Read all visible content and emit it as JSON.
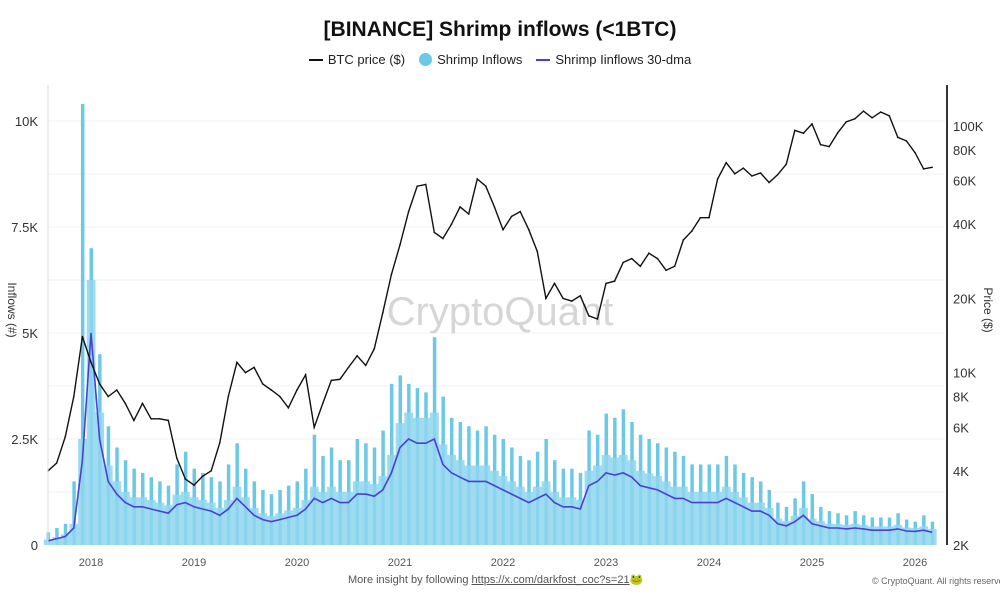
{
  "chart_data": {
    "type": "line",
    "title": "[BINANCE] Shrimp inflows (<1BTC)",
    "ylabel_left": "Inflows (#)",
    "ylabel_right": "Price ($)",
    "legend": [
      {
        "name": "BTC price ($)",
        "color": "#111111",
        "kind": "line"
      },
      {
        "name": "Shrimp Inflows",
        "color": "#6cc9e6",
        "kind": "dot"
      },
      {
        "name": "Shrimp Iinflows 30-dma",
        "color": "#4b3fd6",
        "kind": "line"
      }
    ],
    "legend_position": "top",
    "grid": true,
    "x_ticks": [
      "2018",
      "2019",
      "2020",
      "2021",
      "2022",
      "2023",
      "2024",
      "2025",
      "2026"
    ],
    "y_left_ticks": [
      "0",
      "2.5K",
      "5K",
      "7.5K",
      "10K"
    ],
    "y_left_tick_values": [
      0,
      2500,
      5000,
      7500,
      10000
    ],
    "y_left_range": [
      0,
      10800
    ],
    "y_right_ticks": [
      "2K",
      "4K",
      "6K",
      "8K",
      "10K",
      "20K",
      "40K",
      "60K",
      "80K",
      "100K"
    ],
    "y_right_tick_values": [
      2000,
      4000,
      6000,
      8000,
      10000,
      20000,
      40000,
      60000,
      80000,
      100000
    ],
    "y_right_range": [
      2000,
      130000
    ],
    "y_right_scale": "log",
    "x_range": [
      "2017-08",
      "2026-03"
    ],
    "x": [
      "2017-08",
      "2017-09",
      "2017-10",
      "2017-11",
      "2017-12",
      "2018-01",
      "2018-02",
      "2018-03",
      "2018-04",
      "2018-05",
      "2018-06",
      "2018-07",
      "2018-08",
      "2018-09",
      "2018-10",
      "2018-11",
      "2018-12",
      "2019-01",
      "2019-02",
      "2019-03",
      "2019-04",
      "2019-05",
      "2019-06",
      "2019-07",
      "2019-08",
      "2019-09",
      "2019-10",
      "2019-11",
      "2019-12",
      "2020-01",
      "2020-02",
      "2020-03",
      "2020-04",
      "2020-05",
      "2020-06",
      "2020-07",
      "2020-08",
      "2020-09",
      "2020-10",
      "2020-11",
      "2020-12",
      "2021-01",
      "2021-02",
      "2021-03",
      "2021-04",
      "2021-05",
      "2021-06",
      "2021-07",
      "2021-08",
      "2021-09",
      "2021-10",
      "2021-11",
      "2021-12",
      "2022-01",
      "2022-02",
      "2022-03",
      "2022-04",
      "2022-05",
      "2022-06",
      "2022-07",
      "2022-08",
      "2022-09",
      "2022-10",
      "2022-11",
      "2022-12",
      "2023-01",
      "2023-02",
      "2023-03",
      "2023-04",
      "2023-05",
      "2023-06",
      "2023-07",
      "2023-08",
      "2023-09",
      "2023-10",
      "2023-11",
      "2023-12",
      "2024-01",
      "2024-02",
      "2024-03",
      "2024-04",
      "2024-05",
      "2024-06",
      "2024-07",
      "2024-08",
      "2024-09",
      "2024-10",
      "2024-11",
      "2024-12",
      "2025-01",
      "2025-02",
      "2025-03",
      "2025-04",
      "2025-05",
      "2025-06",
      "2025-07",
      "2025-08",
      "2025-09",
      "2025-10",
      "2025-11",
      "2025-12",
      "2026-01",
      "2026-02",
      "2026-03"
    ],
    "series": [
      {
        "name": "BTC price ($)",
        "axis": "right",
        "values": [
          4000,
          4300,
          5500,
          8000,
          14000,
          11000,
          9000,
          8000,
          8500,
          7500,
          6400,
          7500,
          6500,
          6500,
          6400,
          4500,
          3700,
          3500,
          3800,
          4000,
          5200,
          8000,
          11000,
          10000,
          10500,
          9000,
          8500,
          8000,
          7200,
          8500,
          9800,
          6000,
          7500,
          9300,
          9400,
          10500,
          11700,
          10700,
          12500,
          17500,
          25000,
          33000,
          45000,
          57000,
          58000,
          37000,
          35000,
          40000,
          47000,
          44000,
          61000,
          57000,
          47000,
          38000,
          43000,
          45000,
          38000,
          31000,
          20000,
          23000,
          20000,
          19500,
          20500,
          17000,
          16500,
          23000,
          23500,
          28000,
          29000,
          27000,
          30500,
          29000,
          26000,
          27000,
          34500,
          37500,
          42500,
          42500,
          61000,
          71000,
          64000,
          67500,
          62700,
          64500,
          59000,
          63500,
          70000,
          96000,
          93500,
          102000,
          84000,
          82500,
          94000,
          104000,
          107000,
          115000,
          108000,
          114000,
          110000,
          90000,
          87000,
          78000,
          67000,
          68000
        ]
      },
      {
        "name": "Shrimp Inflows",
        "axis": "left",
        "values": [
          300,
          400,
          500,
          1500,
          10400,
          7000,
          4500,
          2800,
          2300,
          2000,
          1800,
          1700,
          1600,
          1500,
          1400,
          1900,
          2200,
          1800,
          1700,
          1600,
          1500,
          1900,
          2400,
          1800,
          1500,
          1300,
          1200,
          1300,
          1400,
          1500,
          1800,
          2600,
          2100,
          2300,
          2000,
          2000,
          2500,
          2400,
          2300,
          2700,
          3800,
          4000,
          3800,
          3700,
          3600,
          4900,
          3500,
          3000,
          2900,
          2800,
          2700,
          2800,
          2600,
          2500,
          2300,
          2100,
          2000,
          2200,
          2500,
          2000,
          1800,
          1800,
          1700,
          2700,
          2600,
          3100,
          3000,
          3200,
          2900,
          2600,
          2500,
          2400,
          2300,
          2200,
          2100,
          1900,
          1900,
          1900,
          1900,
          2100,
          1900,
          1700,
          1600,
          1500,
          1300,
          1000,
          900,
          1100,
          1500,
          1200,
          900,
          800,
          750,
          700,
          800,
          700,
          650,
          650,
          650,
          750,
          600,
          550,
          700,
          550
        ]
      },
      {
        "name": "Shrimp Iinflows 30-dma",
        "axis": "left",
        "values": [
          100,
          150,
          200,
          400,
          2000,
          5000,
          2500,
          1500,
          1200,
          1000,
          900,
          900,
          850,
          800,
          750,
          950,
          1000,
          900,
          850,
          800,
          700,
          850,
          1100,
          900,
          700,
          600,
          550,
          600,
          650,
          700,
          850,
          1100,
          1000,
          1100,
          1000,
          1000,
          1200,
          1200,
          1150,
          1300,
          1700,
          2300,
          2500,
          2400,
          2400,
          2500,
          1900,
          1700,
          1600,
          1500,
          1500,
          1500,
          1400,
          1300,
          1200,
          1100,
          1000,
          1100,
          1200,
          1000,
          900,
          900,
          850,
          1400,
          1500,
          1700,
          1650,
          1700,
          1600,
          1400,
          1350,
          1300,
          1200,
          1100,
          1100,
          1000,
          1000,
          1000,
          1000,
          1100,
          1000,
          900,
          800,
          800,
          700,
          500,
          450,
          550,
          700,
          500,
          450,
          400,
          400,
          380,
          400,
          380,
          350,
          350,
          350,
          380,
          330,
          320,
          350,
          300
        ]
      }
    ],
    "watermark": "CryptoQuant"
  },
  "footer": {
    "text": "More insight by following ",
    "link": "https://x.com/darkfost_coc?s=21",
    "emoji": "🐸",
    "copyright": "© CryptoQuant. All rights reserved"
  }
}
